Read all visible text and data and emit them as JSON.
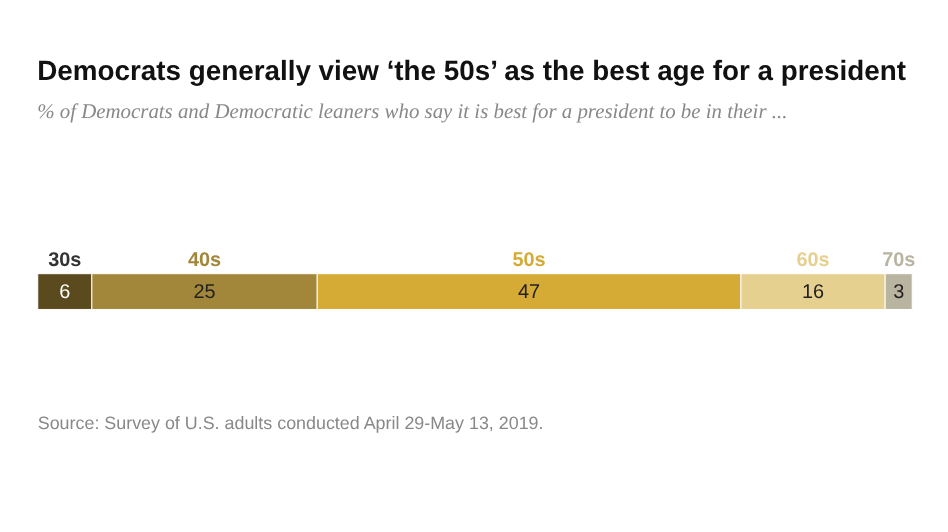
{
  "chart_data": {
    "type": "bar",
    "orientation": "horizontal",
    "stacked": true,
    "data_labels": true,
    "title": "Democrats generally view ‘the 50s’ as the best age for a president",
    "subtitle": "% of Democrats and Democratic leaners who say it is best for a president to be in their ...",
    "categories": [
      null
    ],
    "series": [
      {
        "name": "30s",
        "color": "#5b4a1e",
        "values": [
          6
        ]
      },
      {
        "name": "40s",
        "color": "#a2873a",
        "values": [
          25
        ]
      },
      {
        "name": "50s",
        "color": "#d5aa35",
        "values": [
          47
        ]
      },
      {
        "name": "60s",
        "color": "#e6d08f",
        "values": [
          16
        ]
      },
      {
        "name": "70s",
        "color": "#b8b4a0",
        "values": [
          3
        ]
      }
    ],
    "annotations": [
      "Source: Survey of U.S. adults conducted April 29-May 13, 2019."
    ]
  }
}
